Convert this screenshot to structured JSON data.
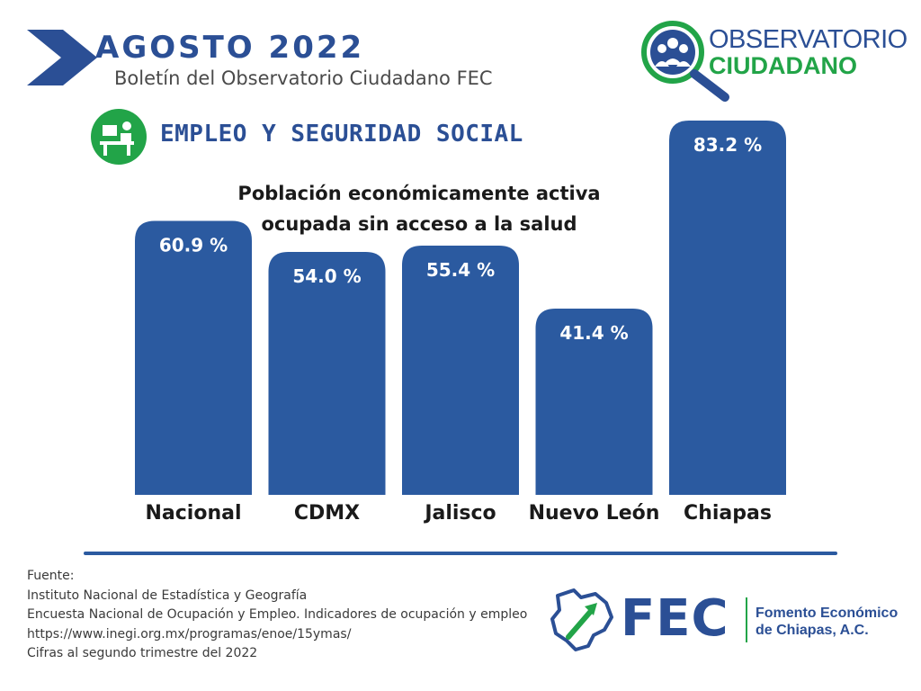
{
  "header": {
    "month": "AGOSTO  2022",
    "subtitle": "Boletín del Observatorio Ciudadano FEC"
  },
  "brand": {
    "line1": "OBSERVATORIO",
    "line2": "CIUDADANO",
    "fec": "FEC",
    "fec_line1": "Fomento Económico",
    "fec_line2": "de Chiapas, A.C.",
    "colors": {
      "blue": "#2b4f95",
      "bar": "#2b5aa0",
      "green": "#22a448"
    }
  },
  "section": {
    "title": "EMPLEO Y SEGURIDAD SOCIAL",
    "icon": "worker-at-desk-icon"
  },
  "chart_data": {
    "type": "bar",
    "title_lines": [
      "Población económicamente activa",
      "ocupada sin acceso a la salud"
    ],
    "categories": [
      "Nacional",
      "CDMX",
      "Jalisco",
      "Nuevo León",
      "Chiapas"
    ],
    "values": [
      60.9,
      54.0,
      55.4,
      41.4,
      83.2
    ],
    "value_labels": [
      "60.9 %",
      "54.0 %",
      "55.4 %",
      "41.4 %",
      "83.2 %"
    ],
    "ylim": [
      0,
      100
    ],
    "grid": false,
    "legend": "none"
  },
  "source": {
    "lines": [
      "Fuente:",
      "Instituto Nacional de Estadística y Geografía",
      "Encuesta Nacional de Ocupación y Empleo. Indicadores de ocupación y empleo",
      "https://www.inegi.org.mx/programas/enoe/15ymas/",
      "Cifras al segundo trimestre del 2022"
    ]
  }
}
